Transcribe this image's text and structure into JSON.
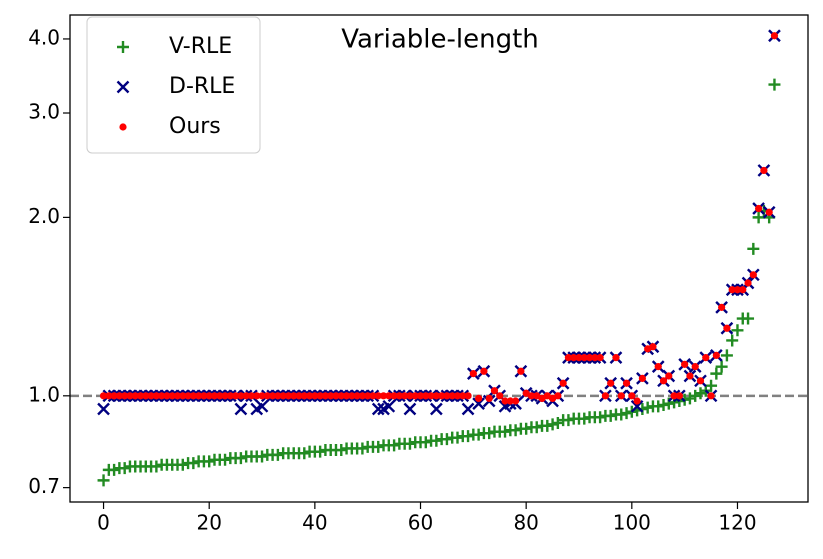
{
  "chart_data": {
    "type": "scatter",
    "title": "Variable-length",
    "x": [
      0,
      1,
      2,
      3,
      4,
      5,
      6,
      7,
      8,
      9,
      10,
      11,
      12,
      13,
      14,
      15,
      16,
      17,
      18,
      19,
      20,
      21,
      22,
      23,
      24,
      25,
      26,
      27,
      28,
      29,
      30,
      31,
      32,
      33,
      34,
      35,
      36,
      37,
      38,
      39,
      40,
      41,
      42,
      43,
      44,
      45,
      46,
      47,
      48,
      49,
      50,
      51,
      52,
      53,
      54,
      55,
      56,
      57,
      58,
      59,
      60,
      61,
      62,
      63,
      64,
      65,
      66,
      67,
      68,
      69,
      70,
      71,
      72,
      73,
      74,
      75,
      76,
      77,
      78,
      79,
      80,
      81,
      82,
      83,
      84,
      85,
      86,
      87,
      88,
      89,
      90,
      91,
      92,
      93,
      94,
      95,
      96,
      97,
      98,
      99,
      100,
      101,
      102,
      103,
      104,
      105,
      106,
      107,
      108,
      109,
      110,
      111,
      112,
      113,
      114,
      115,
      116,
      117,
      118,
      119,
      120,
      121,
      122,
      123,
      124,
      125,
      126,
      127
    ],
    "series": [
      {
        "name": "V-RLE",
        "color": "#228b22",
        "marker": "+",
        "values": [
          0.72,
          0.75,
          0.75,
          0.755,
          0.755,
          0.76,
          0.76,
          0.76,
          0.76,
          0.76,
          0.76,
          0.765,
          0.765,
          0.765,
          0.765,
          0.765,
          0.77,
          0.77,
          0.775,
          0.775,
          0.775,
          0.78,
          0.78,
          0.78,
          0.785,
          0.785,
          0.785,
          0.79,
          0.79,
          0.79,
          0.79,
          0.795,
          0.795,
          0.795,
          0.8,
          0.8,
          0.8,
          0.8,
          0.8,
          0.805,
          0.805,
          0.805,
          0.81,
          0.81,
          0.81,
          0.81,
          0.815,
          0.815,
          0.815,
          0.815,
          0.82,
          0.82,
          0.82,
          0.825,
          0.825,
          0.825,
          0.83,
          0.83,
          0.83,
          0.835,
          0.835,
          0.835,
          0.84,
          0.84,
          0.845,
          0.845,
          0.85,
          0.85,
          0.855,
          0.855,
          0.86,
          0.86,
          0.865,
          0.865,
          0.87,
          0.87,
          0.87,
          0.875,
          0.875,
          0.88,
          0.88,
          0.885,
          0.885,
          0.89,
          0.89,
          0.895,
          0.9,
          0.91,
          0.91,
          0.915,
          0.915,
          0.915,
          0.92,
          0.92,
          0.92,
          0.925,
          0.925,
          0.93,
          0.93,
          0.935,
          0.94,
          0.945,
          0.95,
          0.955,
          0.96,
          0.96,
          0.965,
          0.97,
          0.975,
          0.98,
          0.985,
          0.99,
          1.0,
          1.01,
          1.02,
          1.04,
          1.09,
          1.12,
          1.17,
          1.24,
          1.29,
          1.35,
          1.35,
          1.77,
          2.0,
          2.05,
          2.0,
          3.35
        ]
      },
      {
        "name": "D-RLE",
        "color": "#000080",
        "marker": "x",
        "values": [
          0.95,
          1,
          1,
          1,
          1,
          1,
          1,
          1,
          1,
          1,
          1,
          1,
          1,
          1,
          1,
          1,
          1,
          1,
          1,
          1,
          1,
          1,
          1,
          1,
          1,
          1,
          0.95,
          1,
          1,
          0.95,
          0.96,
          1,
          1,
          1,
          1,
          1,
          1,
          1,
          1,
          1,
          1,
          1,
          1,
          1,
          1,
          1,
          1,
          1,
          1,
          1,
          1,
          1,
          0.95,
          0.95,
          0.96,
          1,
          1,
          1,
          0.95,
          1,
          1,
          1,
          1,
          0.95,
          1,
          1,
          1,
          1,
          1,
          0.95,
          1.09,
          0.97,
          1.1,
          0.98,
          1.02,
          1,
          0.96,
          0.97,
          0.97,
          1.1,
          1.01,
          1,
          1,
          0.99,
          1,
          0.98,
          1,
          1.05,
          1.16,
          1.16,
          1.16,
          1.16,
          1.16,
          1.16,
          1.16,
          1,
          1.05,
          1.16,
          1,
          1.05,
          1,
          0.96,
          1.07,
          1.2,
          1.21,
          1.12,
          1.06,
          1.08,
          1,
          1,
          1.13,
          1.08,
          1.12,
          1.06,
          1.16,
          1,
          1.17,
          1.41,
          1.3,
          1.51,
          1.51,
          1.51,
          1.55,
          1.6,
          2.07,
          2.4,
          2.04,
          4.05
        ]
      },
      {
        "name": "Ours",
        "color": "#ff0000",
        "marker": "o",
        "values": [
          1,
          1,
          1,
          1,
          1,
          1,
          1,
          1,
          1,
          1,
          1,
          1,
          1,
          1,
          1,
          1,
          1,
          1,
          1,
          1,
          1,
          1,
          1,
          1,
          1,
          1,
          1,
          1,
          1,
          1,
          1,
          1,
          1,
          1,
          1,
          1,
          1,
          1,
          1,
          1,
          1,
          1,
          1,
          1,
          1,
          1,
          1,
          1,
          1,
          1,
          1,
          1,
          1,
          1,
          1,
          1,
          1,
          1,
          1,
          1,
          1,
          1,
          1,
          1,
          1,
          1,
          1,
          1,
          1,
          1,
          1.09,
          0.99,
          1.1,
          0.99,
          1.02,
          1,
          0.98,
          0.98,
          0.98,
          1.1,
          1.01,
          1,
          1,
          0.99,
          1,
          0.99,
          1,
          1.05,
          1.16,
          1.16,
          1.16,
          1.16,
          1.16,
          1.16,
          1.16,
          1,
          1.05,
          1.16,
          1,
          1.05,
          1,
          0.98,
          1.07,
          1.2,
          1.21,
          1.12,
          1.06,
          1.08,
          1,
          1,
          1.13,
          1.08,
          1.12,
          1.06,
          1.16,
          1,
          1.17,
          1.41,
          1.3,
          1.51,
          1.51,
          1.51,
          1.55,
          1.6,
          2.07,
          2.4,
          2.04,
          4.05
        ]
      }
    ],
    "xlim": [
      -6.35,
      133.35
    ],
    "xticks": [
      0,
      20,
      40,
      60,
      80,
      100,
      120
    ],
    "ylim": [
      0.662,
      4.39
    ],
    "yscale": "log",
    "yticks": [
      0.7,
      {
        "value": 1,
        "label": "1.0"
      },
      {
        "value": 2,
        "label": "2.0"
      },
      {
        "value": 3,
        "label": "3.0"
      },
      {
        "value": 4,
        "label": "4.0"
      }
    ],
    "reference_line": {
      "value": 1,
      "color": "#808080"
    },
    "legend": "upper left"
  }
}
